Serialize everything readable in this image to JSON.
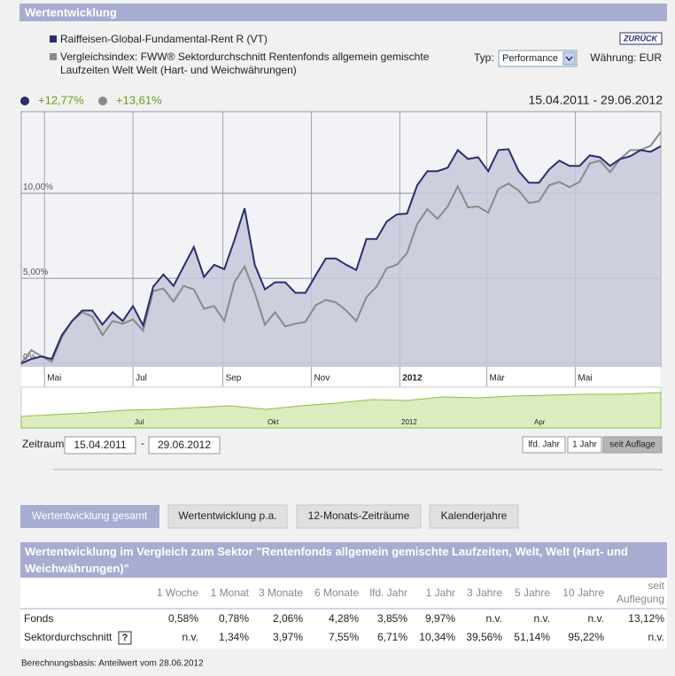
{
  "header": {
    "title": "Wertentwicklung",
    "back_button": "ZURÜCK"
  },
  "legend": {
    "items": [
      "Raiffeisen-Global-Fundamental-Rent R (VT)",
      "Vergleichsindex: FWW® Sektordurchschnitt Rentenfonds allgemein gemischte Laufzeiten Welt Welt (Hart- und Weichwährungen)"
    ],
    "summary": [
      "+12,77%",
      "+13,61%"
    ],
    "date_range": "15.04.2011 - 29.06.2012"
  },
  "controls": {
    "type_label": "Typ:",
    "type_value": "Performance",
    "currency": "Währung: EUR"
  },
  "chart_data": {
    "type": "area-line",
    "x": [
      "15.04.2011",
      "22.04.2011",
      "29.04.2011",
      "06.05.2011",
      "13.05.2011",
      "20.05.2011",
      "27.05.2011",
      "03.06.2011",
      "10.06.2011",
      "17.06.2011",
      "24.06.2011",
      "01.07.2011",
      "08.07.2011",
      "15.07.2011",
      "22.07.2011",
      "29.07.2011",
      "05.08.2011",
      "12.08.2011",
      "19.08.2011",
      "26.08.2011",
      "02.09.2011",
      "09.09.2011",
      "16.09.2011",
      "23.09.2011",
      "30.09.2011",
      "07.10.2011",
      "14.10.2011",
      "21.10.2011",
      "28.10.2011",
      "04.11.2011",
      "11.11.2011",
      "18.11.2011",
      "25.11.2011",
      "02.12.2011",
      "09.12.2011",
      "16.12.2011",
      "23.12.2011",
      "30.12.2011",
      "06.01.2012",
      "13.01.2012",
      "20.01.2012",
      "27.01.2012",
      "03.02.2012",
      "10.02.2012",
      "17.02.2012",
      "24.02.2012",
      "02.03.2012",
      "09.03.2012",
      "16.03.2012",
      "23.03.2012",
      "30.03.2012",
      "06.04.2012",
      "13.04.2012",
      "20.04.2012",
      "27.04.2012",
      "04.05.2012",
      "11.05.2012",
      "18.05.2012",
      "25.05.2012",
      "01.06.2012",
      "08.06.2012",
      "15.06.2012",
      "22.06.2012",
      "29.06.2012"
    ],
    "series": [
      {
        "name": "Raiffeisen-Global-Fundamental-Rent R (VT)",
        "color": "#2b2d6e",
        "fill": "#c6c7d9",
        "values": [
          0,
          0.26,
          0.41,
          0.26,
          1.66,
          2.49,
          3.11,
          3.11,
          2.28,
          3.01,
          2.49,
          3.37,
          2.23,
          4.51,
          5.23,
          4.56,
          5.7,
          6.84,
          5.08,
          5.8,
          5.54,
          7.25,
          9.12,
          5.8,
          4.35,
          4.77,
          4.77,
          4.15,
          4.15,
          5.18,
          6.17,
          6.17,
          5.8,
          5.49,
          7.31,
          7.31,
          8.34,
          8.76,
          8.81,
          10.47,
          11.3,
          11.3,
          11.5,
          12.54,
          12.02,
          12.12,
          11.3,
          12.54,
          12.59,
          11.3,
          10.62,
          10.62,
          11.4,
          11.92,
          11.61,
          11.61,
          12.23,
          12.12,
          11.61,
          12.02,
          12.18,
          12.54,
          12.44,
          12.77
        ]
      },
      {
        "name": "Vergleichsindex",
        "color": "#8a8a8a",
        "values": [
          0,
          0.78,
          0.41,
          0.1,
          1.55,
          2.49,
          3.01,
          2.75,
          1.66,
          2.49,
          2.33,
          2.59,
          1.92,
          4.25,
          4.4,
          3.63,
          4.56,
          4.35,
          3.21,
          3.37,
          2.49,
          4.77,
          5.7,
          4.15,
          2.28,
          3.01,
          2.18,
          2.33,
          2.44,
          3.42,
          3.73,
          3.58,
          3.11,
          2.49,
          3.89,
          4.51,
          5.6,
          5.8,
          6.48,
          8.19,
          9.07,
          8.5,
          9.22,
          10.41,
          9.17,
          9.22,
          8.86,
          10.26,
          10.57,
          10.16,
          9.43,
          9.53,
          10.47,
          10.67,
          10.36,
          10.67,
          11.76,
          11.92,
          11.24,
          12.02,
          12.54,
          12.54,
          12.8,
          13.61
        ]
      }
    ],
    "xlim": [
      "15.04.2011",
      "29.06.2012"
    ],
    "xticks": [
      {
        "value": "01.05.2011",
        "label": "Mai"
      },
      {
        "value": "01.07.2011",
        "label": "Jul"
      },
      {
        "value": "01.09.2011",
        "label": "Sep"
      },
      {
        "value": "01.11.2011",
        "label": "Nov"
      },
      {
        "value": "01.01.2012",
        "label": "2012"
      },
      {
        "value": "01.03.2012",
        "label": "Mär"
      },
      {
        "value": "01.05.2012",
        "label": "Mai"
      }
    ],
    "ylim": [
      -0.2,
      14.8
    ],
    "yticks": [
      {
        "value": 0,
        "label": "0%"
      },
      {
        "value": 5,
        "label": "5,00%"
      },
      {
        "value": 10,
        "label": "10,00%"
      }
    ],
    "grid": true
  },
  "navigator": {
    "labels": [
      "Jul",
      "Okt",
      "2012",
      "Apr"
    ]
  },
  "period": {
    "label": "Zeitraum:",
    "from": "15.04.2011",
    "separator": "-",
    "to": "29.06.2012",
    "buttons": [
      "lfd. Jahr",
      "1 Jahr",
      "seit Auflage"
    ]
  },
  "tabs": [
    "Wertentwicklung gesamt",
    "Wertentwicklung p.a.",
    "12-Monats-Zeiträume",
    "Kalenderjahre"
  ],
  "table": {
    "title": "Wertentwicklung im Vergleich zum Sektor \"Rentenfonds allgemein gemischte Laufzeiten, Welt, Welt (Hart- und Weichwährungen)\"",
    "columns": [
      "1 Woche",
      "1 Monat",
      "3 Monate",
      "6 Monate",
      "lfd. Jahr",
      "1 Jahr",
      "3 Jahre",
      "5 Jahre",
      "10 Jahre",
      "seit Auflegung"
    ],
    "rows": [
      {
        "label": "Fonds",
        "cells": [
          "0,58%",
          "0,78%",
          "2,06%",
          "4,28%",
          "3,85%",
          "9,97%",
          "n.v.",
          "n.v.",
          "n.v.",
          "13,12%"
        ]
      },
      {
        "label": "Sektordurchschnitt",
        "help": "?",
        "cells": [
          "n.v.",
          "1,34%",
          "3,97%",
          "7,55%",
          "6,71%",
          "10,34%",
          "39,56%",
          "51,14%",
          "95,22%",
          "n.v."
        ]
      }
    ]
  },
  "footnote": "Berechnungsbasis: Anteilwert vom 28.06.2012"
}
